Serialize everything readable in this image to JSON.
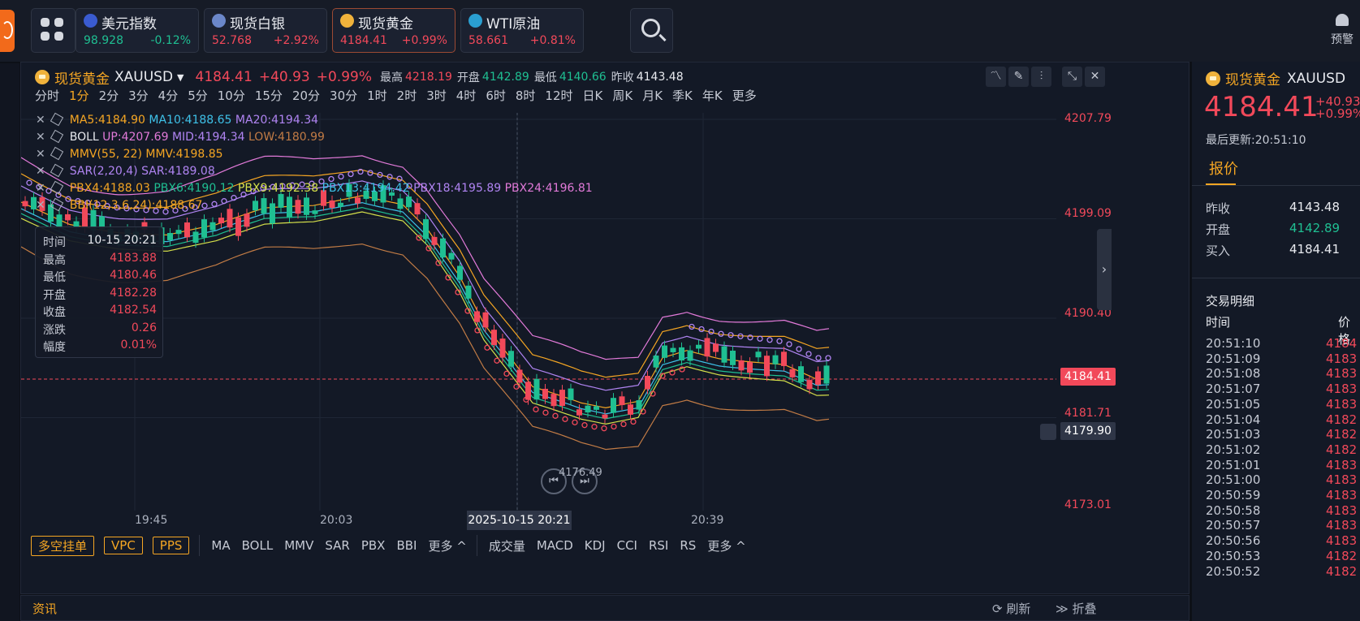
{
  "top": {
    "quotes": [
      {
        "name": "美元指数",
        "price": "98.928",
        "change": "-0.12%",
        "dir": "dn",
        "flag": "#3a5bd0"
      },
      {
        "name": "现货白银",
        "price": "52.768",
        "change": "+2.92%",
        "dir": "up",
        "flag": "#6b87c9"
      },
      {
        "name": "现货黄金",
        "price": "4184.41",
        "change": "+0.99%",
        "dir": "up",
        "flag": "#f0b23b"
      },
      {
        "name": "WTI原油",
        "price": "58.661",
        "change": "+0.81%",
        "dir": "up",
        "flag": "#2a9fd1"
      }
    ],
    "alert_label": "预警"
  },
  "chart_header": {
    "name": "现货黄金",
    "symbol": "XAUUSD",
    "price": "4184.41",
    "change": "+40.93",
    "pct": "+0.99%",
    "high_label": "最高",
    "high": "4218.19",
    "open_label": "开盘",
    "open": "4142.89",
    "low_label": "最低",
    "low": "4140.66",
    "prev_label": "昨收",
    "prev": "4143.48"
  },
  "periods": [
    "分时",
    "1分",
    "2分",
    "3分",
    "4分",
    "5分",
    "10分",
    "15分",
    "20分",
    "30分",
    "1时",
    "2时",
    "3时",
    "4时",
    "6时",
    "8时",
    "12时",
    "日K",
    "周K",
    "月K",
    "季K",
    "年K",
    "更多"
  ],
  "indicators": {
    "ma": {
      "ma5": "MA5:4184.90",
      "ma10": "MA10:4188.65",
      "ma20": "MA20:4194.34"
    },
    "boll": {
      "name": "BOLL",
      "up": "UP:4207.69",
      "mid": "MID:4194.34",
      "low": "LOW:4180.99"
    },
    "mmv": "MMV(55, 22) MMV:4198.85",
    "sar": "SAR(2,20,4) SAR:4189.08",
    "pbx": {
      "p4": "PBX4:4188.03",
      "p6": "PBX6:4190.12",
      "p9": "PBX9:4192.38",
      "p13": "PBX13:4194.42",
      "p18": "PBX18:4195.89",
      "p24": "PBX24:4196.81"
    },
    "bbi": "BBI(12,3,6,24):4188.67"
  },
  "tooltip": {
    "rows": [
      {
        "k": "时间",
        "v": "10-15 20:21",
        "c": "#e8eaef"
      },
      {
        "k": "最高",
        "v": "4183.88",
        "c": "#f2495a"
      },
      {
        "k": "最低",
        "v": "4180.46",
        "c": "#f2495a"
      },
      {
        "k": "开盘",
        "v": "4182.28",
        "c": "#f2495a"
      },
      {
        "k": "收盘",
        "v": "4182.54",
        "c": "#f2495a"
      },
      {
        "k": "涨跌",
        "v": "0.26",
        "c": "#f2495a"
      },
      {
        "k": "幅度",
        "v": "0.01%",
        "c": "#f2495a"
      }
    ]
  },
  "chart_data": {
    "type": "candlestick",
    "y_ticks": [
      "4207.79",
      "4199.09",
      "4190.40",
      "4181.71",
      "4173.01"
    ],
    "x_ticks": [
      "19:45",
      "20:03",
      "20:39"
    ],
    "cursor_time": "2025-10-15 20:21",
    "last_price": "4184.41",
    "alert_price": "4179.90",
    "min_label": "4176.49",
    "ylim": [
      4173.01,
      4207.79
    ]
  },
  "bottom_bar": {
    "buttons": [
      "多空挂单",
      "VPC",
      "PPS"
    ],
    "main_inds": [
      "MA",
      "BOLL",
      "MMV",
      "SAR",
      "PBX",
      "BBI",
      "更多 ^"
    ],
    "sub_inds": [
      "成交量",
      "MACD",
      "KDJ",
      "CCI",
      "RSI",
      "RS",
      "更多 ^"
    ]
  },
  "news": {
    "title": "资讯",
    "refresh": "刷新",
    "collapse": "折叠"
  },
  "right": {
    "name": "现货黄金",
    "symbol": "XAUUSD",
    "price": "4184.41",
    "change": "+40.93",
    "pct": "+0.99%",
    "updated": "最后更新:20:51:10",
    "tab": "报价",
    "rows": [
      {
        "k": "昨收",
        "v": "4143.48",
        "c": "#e8eaef"
      },
      {
        "k": "开盘",
        "v": "4142.89",
        "c": "#1fbf92"
      },
      {
        "k": "买入",
        "v": "4184.41",
        "c": "#e8eaef"
      }
    ],
    "detail_title": "交易明细",
    "col_time": "时间",
    "col_price": "价格",
    "trades": [
      {
        "t": "20:51:10",
        "p": "4184"
      },
      {
        "t": "20:51:09",
        "p": "4183"
      },
      {
        "t": "20:51:08",
        "p": "4183"
      },
      {
        "t": "20:51:07",
        "p": "4183"
      },
      {
        "t": "20:51:05",
        "p": "4183"
      },
      {
        "t": "20:51:04",
        "p": "4182"
      },
      {
        "t": "20:51:03",
        "p": "4182"
      },
      {
        "t": "20:51:02",
        "p": "4182"
      },
      {
        "t": "20:51:01",
        "p": "4183"
      },
      {
        "t": "20:51:00",
        "p": "4183"
      },
      {
        "t": "20:50:59",
        "p": "4183"
      },
      {
        "t": "20:50:58",
        "p": "4183"
      },
      {
        "t": "20:50:57",
        "p": "4183"
      },
      {
        "t": "20:50:56",
        "p": "4183"
      },
      {
        "t": "20:50:53",
        "p": "4182"
      },
      {
        "t": "20:50:52",
        "p": "4182"
      }
    ]
  }
}
